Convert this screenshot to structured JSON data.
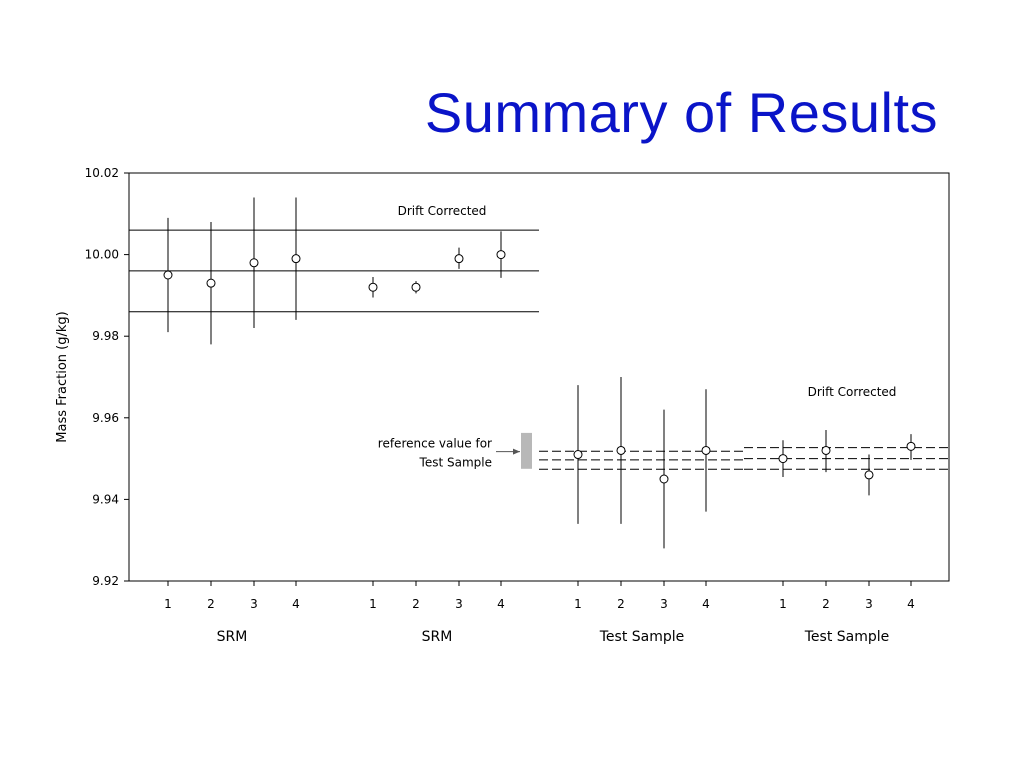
{
  "slide": {
    "title": "Summary of Results"
  },
  "chart_data": {
    "type": "scatter",
    "ylabel": "Mass Fraction (g/kg)",
    "ylim": [
      9.92,
      10.02
    ],
    "yticks": [
      "10.02",
      "10.00",
      "9.98",
      "9.96",
      "9.94",
      "9.92"
    ],
    "yticks_values": [
      10.02,
      10.0,
      9.98,
      9.96,
      9.94,
      9.92
    ],
    "grid": false,
    "panels": [
      {
        "group_label": "SRM",
        "annotation": "",
        "x": [
          "1",
          "2",
          "3",
          "4"
        ],
        "values": [
          9.995,
          9.993,
          9.998,
          9.999
        ],
        "error_low": [
          9.981,
          9.978,
          9.982,
          9.984
        ],
        "error_high": [
          10.009,
          10.008,
          10.014,
          10.014
        ],
        "ref_lines": [
          10.006,
          9.996,
          9.986
        ],
        "ref_style": "solid"
      },
      {
        "group_label": "SRM",
        "annotation": "Drift Corrected",
        "x": [
          "1",
          "2",
          "3",
          "4"
        ],
        "values": [
          9.992,
          9.992,
          9.999,
          10.0
        ],
        "error_low": [
          9.9895,
          9.9905,
          9.9965,
          9.9943
        ],
        "error_high": [
          9.9945,
          9.9935,
          10.0017,
          10.0057
        ],
        "ref_lines": [
          10.006,
          9.996,
          9.986
        ],
        "ref_style": "solid"
      },
      {
        "group_label": "Test Sample",
        "annotation": "",
        "x": [
          "1",
          "2",
          "3",
          "4"
        ],
        "values": [
          9.951,
          9.952,
          9.945,
          9.952
        ],
        "error_low": [
          9.934,
          9.934,
          9.928,
          9.937
        ],
        "error_high": [
          9.968,
          9.97,
          9.962,
          9.967
        ],
        "ref_lines": [
          9.9518,
          9.9497,
          9.9474
        ],
        "ref_style": "dashed"
      },
      {
        "group_label": "Test Sample",
        "annotation": "Drift Corrected",
        "x": [
          "1",
          "2",
          "3",
          "4"
        ],
        "values": [
          9.95,
          9.952,
          9.946,
          9.953
        ],
        "error_low": [
          9.9455,
          9.9467,
          9.941,
          9.9497
        ],
        "error_high": [
          9.9545,
          9.957,
          9.951,
          9.956
        ],
        "ref_lines": [
          9.9527,
          9.95,
          9.9474
        ],
        "ref_style": "dashed"
      }
    ],
    "reference": {
      "label_line1": "reference value for",
      "label_line2": "Test Sample",
      "value_low": 9.9475,
      "value_high": 9.9563
    }
  }
}
